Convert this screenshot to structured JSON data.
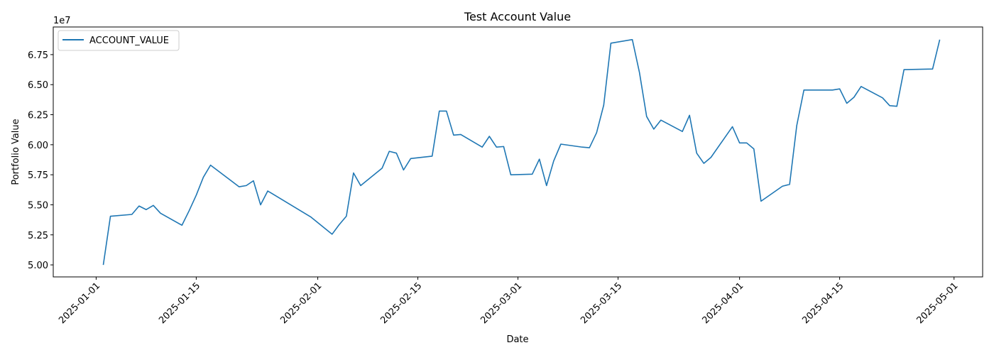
{
  "chart_data": {
    "type": "line",
    "title": "Test Account Value",
    "xlabel": "Date",
    "ylabel": "Portfolio Value",
    "y_offset_text": "1e7",
    "y_scale_multiplier": 10000000,
    "xlim": [
      "2024-12-26",
      "2025-05-05"
    ],
    "ylim": [
      49000000,
      69800000
    ],
    "x_ticks": [
      "2025-01-01",
      "2025-01-15",
      "2025-02-01",
      "2025-02-15",
      "2025-03-01",
      "2025-03-15",
      "2025-04-01",
      "2025-04-15",
      "2025-05-01"
    ],
    "y_ticks": [
      50000000,
      52500000,
      55000000,
      57500000,
      60000000,
      62500000,
      65000000,
      67500000
    ],
    "y_tick_labels": [
      "5.00",
      "5.25",
      "5.50",
      "5.75",
      "6.00",
      "6.25",
      "6.50",
      "6.75"
    ],
    "grid": false,
    "legend": {
      "placement": "top-left"
    },
    "colors": {
      "series": "#1f77b4"
    },
    "series": [
      {
        "name": "ACCOUNT_VALUE",
        "x": [
          "2025-01-02",
          "2025-01-03",
          "2025-01-06",
          "2025-01-07",
          "2025-01-08",
          "2025-01-09",
          "2025-01-10",
          "2025-01-13",
          "2025-01-14",
          "2025-01-15",
          "2025-01-16",
          "2025-01-17",
          "2025-01-21",
          "2025-01-22",
          "2025-01-23",
          "2025-01-24",
          "2025-01-25",
          "2025-01-31",
          "2025-02-03",
          "2025-02-04",
          "2025-02-05",
          "2025-02-06",
          "2025-02-07",
          "2025-02-10",
          "2025-02-11",
          "2025-02-12",
          "2025-02-13",
          "2025-02-14",
          "2025-02-17",
          "2025-02-18",
          "2025-02-19",
          "2025-02-20",
          "2025-02-21",
          "2025-02-24",
          "2025-02-25",
          "2025-02-26",
          "2025-02-27",
          "2025-02-28",
          "2025-03-03",
          "2025-03-04",
          "2025-03-05",
          "2025-03-06",
          "2025-03-07",
          "2025-03-10",
          "2025-03-11",
          "2025-03-12",
          "2025-03-13",
          "2025-03-14",
          "2025-03-17",
          "2025-03-18",
          "2025-03-19",
          "2025-03-20",
          "2025-03-21",
          "2025-03-24",
          "2025-03-25",
          "2025-03-26",
          "2025-03-27",
          "2025-03-28",
          "2025-03-31",
          "2025-04-01",
          "2025-04-02",
          "2025-04-03",
          "2025-04-04",
          "2025-04-07",
          "2025-04-08",
          "2025-04-09",
          "2025-04-10",
          "2025-04-11",
          "2025-04-14",
          "2025-04-15",
          "2025-04-16",
          "2025-04-17",
          "2025-04-18",
          "2025-04-21",
          "2025-04-22",
          "2025-04-23",
          "2025-04-24",
          "2025-04-28",
          "2025-04-29"
        ],
        "values": [
          50000000,
          54050000,
          54200000,
          54900000,
          54600000,
          54950000,
          54300000,
          53300000,
          54500000,
          55800000,
          57300000,
          58300000,
          56500000,
          56600000,
          57000000,
          55000000,
          56150000,
          54000000,
          52550000,
          53350000,
          54050000,
          57650000,
          56600000,
          58050000,
          59450000,
          59300000,
          57900000,
          58850000,
          59050000,
          62800000,
          62800000,
          60800000,
          60850000,
          59800000,
          60700000,
          59800000,
          59850000,
          57500000,
          57550000,
          58800000,
          56600000,
          58650000,
          60050000,
          59800000,
          59750000,
          61000000,
          63300000,
          68450000,
          68750000,
          66000000,
          62350000,
          61300000,
          62050000,
          61100000,
          62450000,
          59300000,
          58450000,
          58950000,
          61500000,
          60150000,
          60150000,
          59650000,
          55300000,
          56550000,
          56700000,
          61600000,
          64550000,
          64550000,
          64550000,
          64650000,
          63450000,
          63950000,
          64850000,
          63900000,
          63250000,
          63200000,
          66250000,
          66300000,
          68750000
        ]
      }
    ]
  }
}
